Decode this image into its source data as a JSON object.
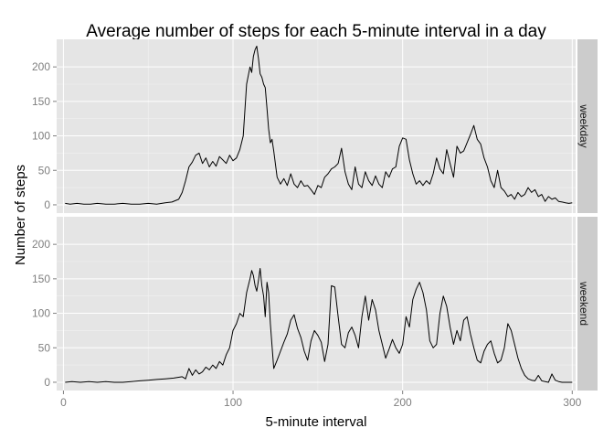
{
  "chart_data": {
    "type": "line",
    "title": "Average number of steps for each 5-minute interval in a day",
    "xlabel": "5-minute interval",
    "ylabel": "Number of steps",
    "xlim": [
      -4,
      302
    ],
    "ylim": [
      -12,
      240
    ],
    "x_ticks": [
      0,
      100,
      200,
      300
    ],
    "x_tick_labels": [
      "0",
      "100",
      "200",
      "300"
    ],
    "y_ticks": [
      0,
      50,
      100,
      150,
      200
    ],
    "y_tick_labels": [
      "0",
      "50",
      "100",
      "150",
      "200"
    ],
    "grid": true,
    "facets": [
      "weekday",
      "weekend"
    ],
    "series": [
      {
        "name": "weekday",
        "points": [
          [
            1,
            2
          ],
          [
            4,
            1
          ],
          [
            8,
            2
          ],
          [
            12,
            1
          ],
          [
            16,
            1
          ],
          [
            20,
            2
          ],
          [
            25,
            1
          ],
          [
            30,
            1
          ],
          [
            35,
            2
          ],
          [
            40,
            1
          ],
          [
            45,
            1
          ],
          [
            50,
            2
          ],
          [
            55,
            1
          ],
          [
            60,
            3
          ],
          [
            64,
            4
          ],
          [
            68,
            8
          ],
          [
            70,
            18
          ],
          [
            72,
            35
          ],
          [
            74,
            55
          ],
          [
            76,
            62
          ],
          [
            78,
            72
          ],
          [
            80,
            75
          ],
          [
            82,
            60
          ],
          [
            84,
            68
          ],
          [
            86,
            55
          ],
          [
            88,
            63
          ],
          [
            90,
            56
          ],
          [
            92,
            70
          ],
          [
            94,
            65
          ],
          [
            96,
            60
          ],
          [
            98,
            72
          ],
          [
            100,
            64
          ],
          [
            102,
            68
          ],
          [
            104,
            80
          ],
          [
            106,
            100
          ],
          [
            108,
            175
          ],
          [
            110,
            200
          ],
          [
            111,
            192
          ],
          [
            112,
            215
          ],
          [
            113,
            225
          ],
          [
            114,
            230
          ],
          [
            115,
            212
          ],
          [
            116,
            190
          ],
          [
            117,
            185
          ],
          [
            118,
            175
          ],
          [
            119,
            170
          ],
          [
            120,
            140
          ],
          [
            121,
            110
          ],
          [
            122,
            90
          ],
          [
            123,
            95
          ],
          [
            124,
            78
          ],
          [
            126,
            40
          ],
          [
            128,
            30
          ],
          [
            130,
            38
          ],
          [
            132,
            28
          ],
          [
            134,
            45
          ],
          [
            136,
            30
          ],
          [
            138,
            25
          ],
          [
            140,
            35
          ],
          [
            142,
            27
          ],
          [
            144,
            28
          ],
          [
            146,
            22
          ],
          [
            148,
            15
          ],
          [
            150,
            28
          ],
          [
            152,
            25
          ],
          [
            154,
            40
          ],
          [
            156,
            45
          ],
          [
            158,
            52
          ],
          [
            160,
            55
          ],
          [
            162,
            60
          ],
          [
            164,
            82
          ],
          [
            166,
            48
          ],
          [
            168,
            30
          ],
          [
            170,
            22
          ],
          [
            172,
            55
          ],
          [
            174,
            30
          ],
          [
            176,
            25
          ],
          [
            178,
            48
          ],
          [
            180,
            35
          ],
          [
            182,
            28
          ],
          [
            184,
            42
          ],
          [
            186,
            30
          ],
          [
            188,
            25
          ],
          [
            190,
            48
          ],
          [
            192,
            40
          ],
          [
            194,
            52
          ],
          [
            196,
            55
          ],
          [
            198,
            85
          ],
          [
            200,
            97
          ],
          [
            202,
            95
          ],
          [
            204,
            65
          ],
          [
            206,
            45
          ],
          [
            208,
            30
          ],
          [
            210,
            35
          ],
          [
            212,
            28
          ],
          [
            214,
            35
          ],
          [
            216,
            30
          ],
          [
            218,
            45
          ],
          [
            220,
            68
          ],
          [
            222,
            52
          ],
          [
            224,
            45
          ],
          [
            226,
            80
          ],
          [
            228,
            60
          ],
          [
            230,
            40
          ],
          [
            232,
            85
          ],
          [
            234,
            75
          ],
          [
            236,
            78
          ],
          [
            238,
            90
          ],
          [
            240,
            102
          ],
          [
            242,
            115
          ],
          [
            244,
            95
          ],
          [
            246,
            88
          ],
          [
            248,
            68
          ],
          [
            250,
            55
          ],
          [
            252,
            35
          ],
          [
            254,
            25
          ],
          [
            256,
            50
          ],
          [
            258,
            25
          ],
          [
            260,
            20
          ],
          [
            262,
            12
          ],
          [
            264,
            15
          ],
          [
            266,
            8
          ],
          [
            268,
            18
          ],
          [
            270,
            12
          ],
          [
            272,
            15
          ],
          [
            274,
            25
          ],
          [
            276,
            18
          ],
          [
            278,
            22
          ],
          [
            280,
            12
          ],
          [
            282,
            15
          ],
          [
            284,
            5
          ],
          [
            286,
            12
          ],
          [
            288,
            8
          ],
          [
            290,
            10
          ],
          [
            292,
            5
          ],
          [
            294,
            4
          ],
          [
            296,
            3
          ],
          [
            298,
            2
          ],
          [
            300,
            3
          ]
        ]
      },
      {
        "name": "weekend",
        "points": [
          [
            1,
            0
          ],
          [
            5,
            1
          ],
          [
            10,
            0
          ],
          [
            15,
            1
          ],
          [
            20,
            0
          ],
          [
            25,
            1
          ],
          [
            30,
            0
          ],
          [
            35,
            0
          ],
          [
            40,
            1
          ],
          [
            45,
            2
          ],
          [
            50,
            3
          ],
          [
            55,
            4
          ],
          [
            60,
            5
          ],
          [
            65,
            6
          ],
          [
            70,
            8
          ],
          [
            72,
            5
          ],
          [
            74,
            20
          ],
          [
            76,
            10
          ],
          [
            78,
            18
          ],
          [
            80,
            12
          ],
          [
            82,
            15
          ],
          [
            84,
            22
          ],
          [
            86,
            18
          ],
          [
            88,
            25
          ],
          [
            90,
            20
          ],
          [
            92,
            30
          ],
          [
            94,
            25
          ],
          [
            96,
            40
          ],
          [
            98,
            50
          ],
          [
            100,
            75
          ],
          [
            102,
            85
          ],
          [
            104,
            100
          ],
          [
            106,
            95
          ],
          [
            108,
            130
          ],
          [
            110,
            150
          ],
          [
            111,
            162
          ],
          [
            112,
            155
          ],
          [
            113,
            140
          ],
          [
            114,
            132
          ],
          [
            115,
            148
          ],
          [
            116,
            165
          ],
          [
            117,
            140
          ],
          [
            118,
            125
          ],
          [
            119,
            95
          ],
          [
            120,
            145
          ],
          [
            121,
            130
          ],
          [
            122,
            85
          ],
          [
            124,
            20
          ],
          [
            126,
            32
          ],
          [
            128,
            45
          ],
          [
            130,
            58
          ],
          [
            132,
            70
          ],
          [
            134,
            90
          ],
          [
            136,
            98
          ],
          [
            138,
            78
          ],
          [
            140,
            65
          ],
          [
            142,
            45
          ],
          [
            144,
            32
          ],
          [
            146,
            60
          ],
          [
            148,
            75
          ],
          [
            150,
            68
          ],
          [
            152,
            58
          ],
          [
            154,
            30
          ],
          [
            156,
            55
          ],
          [
            158,
            140
          ],
          [
            160,
            138
          ],
          [
            162,
            95
          ],
          [
            164,
            55
          ],
          [
            166,
            50
          ],
          [
            168,
            72
          ],
          [
            170,
            80
          ],
          [
            172,
            68
          ],
          [
            174,
            50
          ],
          [
            176,
            95
          ],
          [
            178,
            125
          ],
          [
            180,
            90
          ],
          [
            182,
            120
          ],
          [
            184,
            105
          ],
          [
            186,
            75
          ],
          [
            188,
            55
          ],
          [
            190,
            35
          ],
          [
            192,
            48
          ],
          [
            194,
            62
          ],
          [
            196,
            50
          ],
          [
            198,
            42
          ],
          [
            200,
            55
          ],
          [
            202,
            95
          ],
          [
            204,
            80
          ],
          [
            206,
            120
          ],
          [
            208,
            135
          ],
          [
            210,
            145
          ],
          [
            212,
            130
          ],
          [
            214,
            105
          ],
          [
            216,
            60
          ],
          [
            218,
            50
          ],
          [
            220,
            55
          ],
          [
            222,
            100
          ],
          [
            224,
            125
          ],
          [
            226,
            110
          ],
          [
            228,
            80
          ],
          [
            230,
            55
          ],
          [
            232,
            75
          ],
          [
            234,
            60
          ],
          [
            236,
            90
          ],
          [
            238,
            95
          ],
          [
            240,
            70
          ],
          [
            242,
            50
          ],
          [
            244,
            32
          ],
          [
            246,
            28
          ],
          [
            248,
            45
          ],
          [
            250,
            55
          ],
          [
            252,
            60
          ],
          [
            254,
            42
          ],
          [
            256,
            28
          ],
          [
            258,
            32
          ],
          [
            260,
            50
          ],
          [
            262,
            85
          ],
          [
            264,
            75
          ],
          [
            266,
            55
          ],
          [
            268,
            35
          ],
          [
            270,
            20
          ],
          [
            272,
            10
          ],
          [
            274,
            5
          ],
          [
            276,
            3
          ],
          [
            278,
            2
          ],
          [
            280,
            10
          ],
          [
            282,
            2
          ],
          [
            284,
            1
          ],
          [
            286,
            0
          ],
          [
            288,
            12
          ],
          [
            290,
            3
          ],
          [
            292,
            1
          ],
          [
            294,
            0
          ],
          [
            296,
            0
          ],
          [
            298,
            0
          ],
          [
            300,
            0
          ]
        ]
      }
    ]
  },
  "colors": {
    "panel": "#e5e5e5",
    "grid_major": "#ffffff",
    "strip": "#cccccc",
    "line": "#000000",
    "tick_text": "#7f7f7f"
  }
}
